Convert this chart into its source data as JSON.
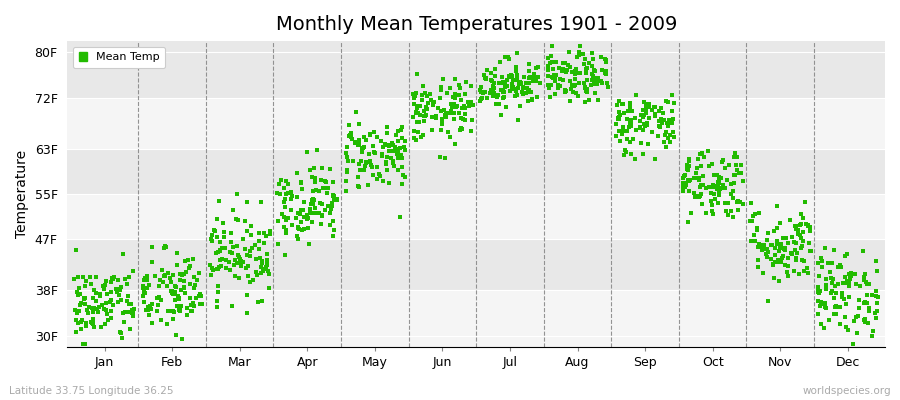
{
  "title": "Monthly Mean Temperatures 1901 - 2009",
  "ylabel": "Temperature",
  "xlabel_bottom_left": "Latitude 33.75 Longitude 36.25",
  "xlabel_bottom_right": "worldspecies.org",
  "legend_label": "Mean Temp",
  "dot_color": "#22BB00",
  "background_color": "#FFFFFF",
  "plot_bg_color": "#FFFFFF",
  "band_color_dark": "#E8E8E8",
  "band_color_light": "#F5F5F5",
  "yticks": [
    30,
    38,
    47,
    55,
    63,
    72,
    80
  ],
  "ytick_labels": [
    "30F",
    "38F",
    "47F",
    "55F",
    "63F",
    "72F",
    "80F"
  ],
  "ylim": [
    28,
    82
  ],
  "months": [
    "Jan",
    "Feb",
    "Mar",
    "Apr",
    "May",
    "Jun",
    "Jul",
    "Aug",
    "Sep",
    "Oct",
    "Nov",
    "Dec"
  ],
  "num_years": 109,
  "seed": 42,
  "monthly_mean_temps_f": [
    35.5,
    37.5,
    44.5,
    53.5,
    62.0,
    69.5,
    74.5,
    75.5,
    67.5,
    57.0,
    46.0,
    37.5
  ],
  "monthly_std_temps_f": [
    3.5,
    3.8,
    3.8,
    3.5,
    3.2,
    2.8,
    2.2,
    2.2,
    2.8,
    3.2,
    3.5,
    3.8
  ],
  "title_fontsize": 14,
  "tick_fontsize": 9,
  "ylabel_fontsize": 10,
  "figsize": [
    9.0,
    4.0
  ],
  "dpi": 100
}
